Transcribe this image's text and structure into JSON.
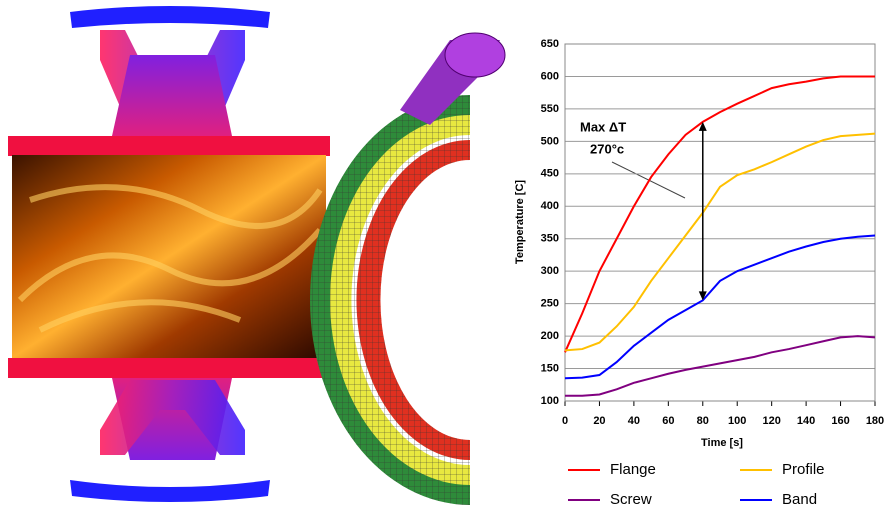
{
  "chart_data": {
    "type": "line",
    "x": [
      0,
      10,
      20,
      30,
      40,
      50,
      60,
      70,
      80,
      90,
      100,
      110,
      120,
      130,
      140,
      150,
      160,
      170,
      180
    ],
    "series": [
      {
        "name": "Flange",
        "color": "#ff0000",
        "values": [
          175,
          235,
          300,
          350,
          400,
          445,
          480,
          510,
          530,
          545,
          558,
          570,
          582,
          588,
          592,
          597,
          600,
          600,
          600
        ]
      },
      {
        "name": "Profile",
        "color": "#ffc000",
        "values": [
          178,
          180,
          190,
          215,
          245,
          285,
          320,
          355,
          390,
          430,
          448,
          457,
          468,
          480,
          492,
          502,
          508,
          510,
          512
        ]
      },
      {
        "name": "Screw",
        "color": "#800080",
        "values": [
          108,
          108,
          110,
          118,
          128,
          135,
          142,
          148,
          153,
          158,
          163,
          168,
          175,
          180,
          186,
          192,
          198,
          200,
          198
        ]
      },
      {
        "name": "Band",
        "color": "#0000ff",
        "values": [
          135,
          136,
          140,
          160,
          185,
          205,
          225,
          240,
          255,
          285,
          300,
          310,
          320,
          330,
          338,
          345,
          350,
          353,
          355
        ]
      }
    ],
    "xlabel": "Time [s]",
    "ylabel": "Temperature [C]",
    "xlim": [
      0,
      180
    ],
    "xticks": [
      0,
      20,
      40,
      60,
      80,
      100,
      120,
      140,
      160,
      180
    ],
    "ylim": [
      100,
      650
    ],
    "yticks": [
      100,
      150,
      200,
      250,
      300,
      350,
      400,
      450,
      500,
      550,
      600,
      650
    ],
    "grid": true,
    "annotations": [
      "Max ΔT",
      "270°c"
    ]
  }
}
